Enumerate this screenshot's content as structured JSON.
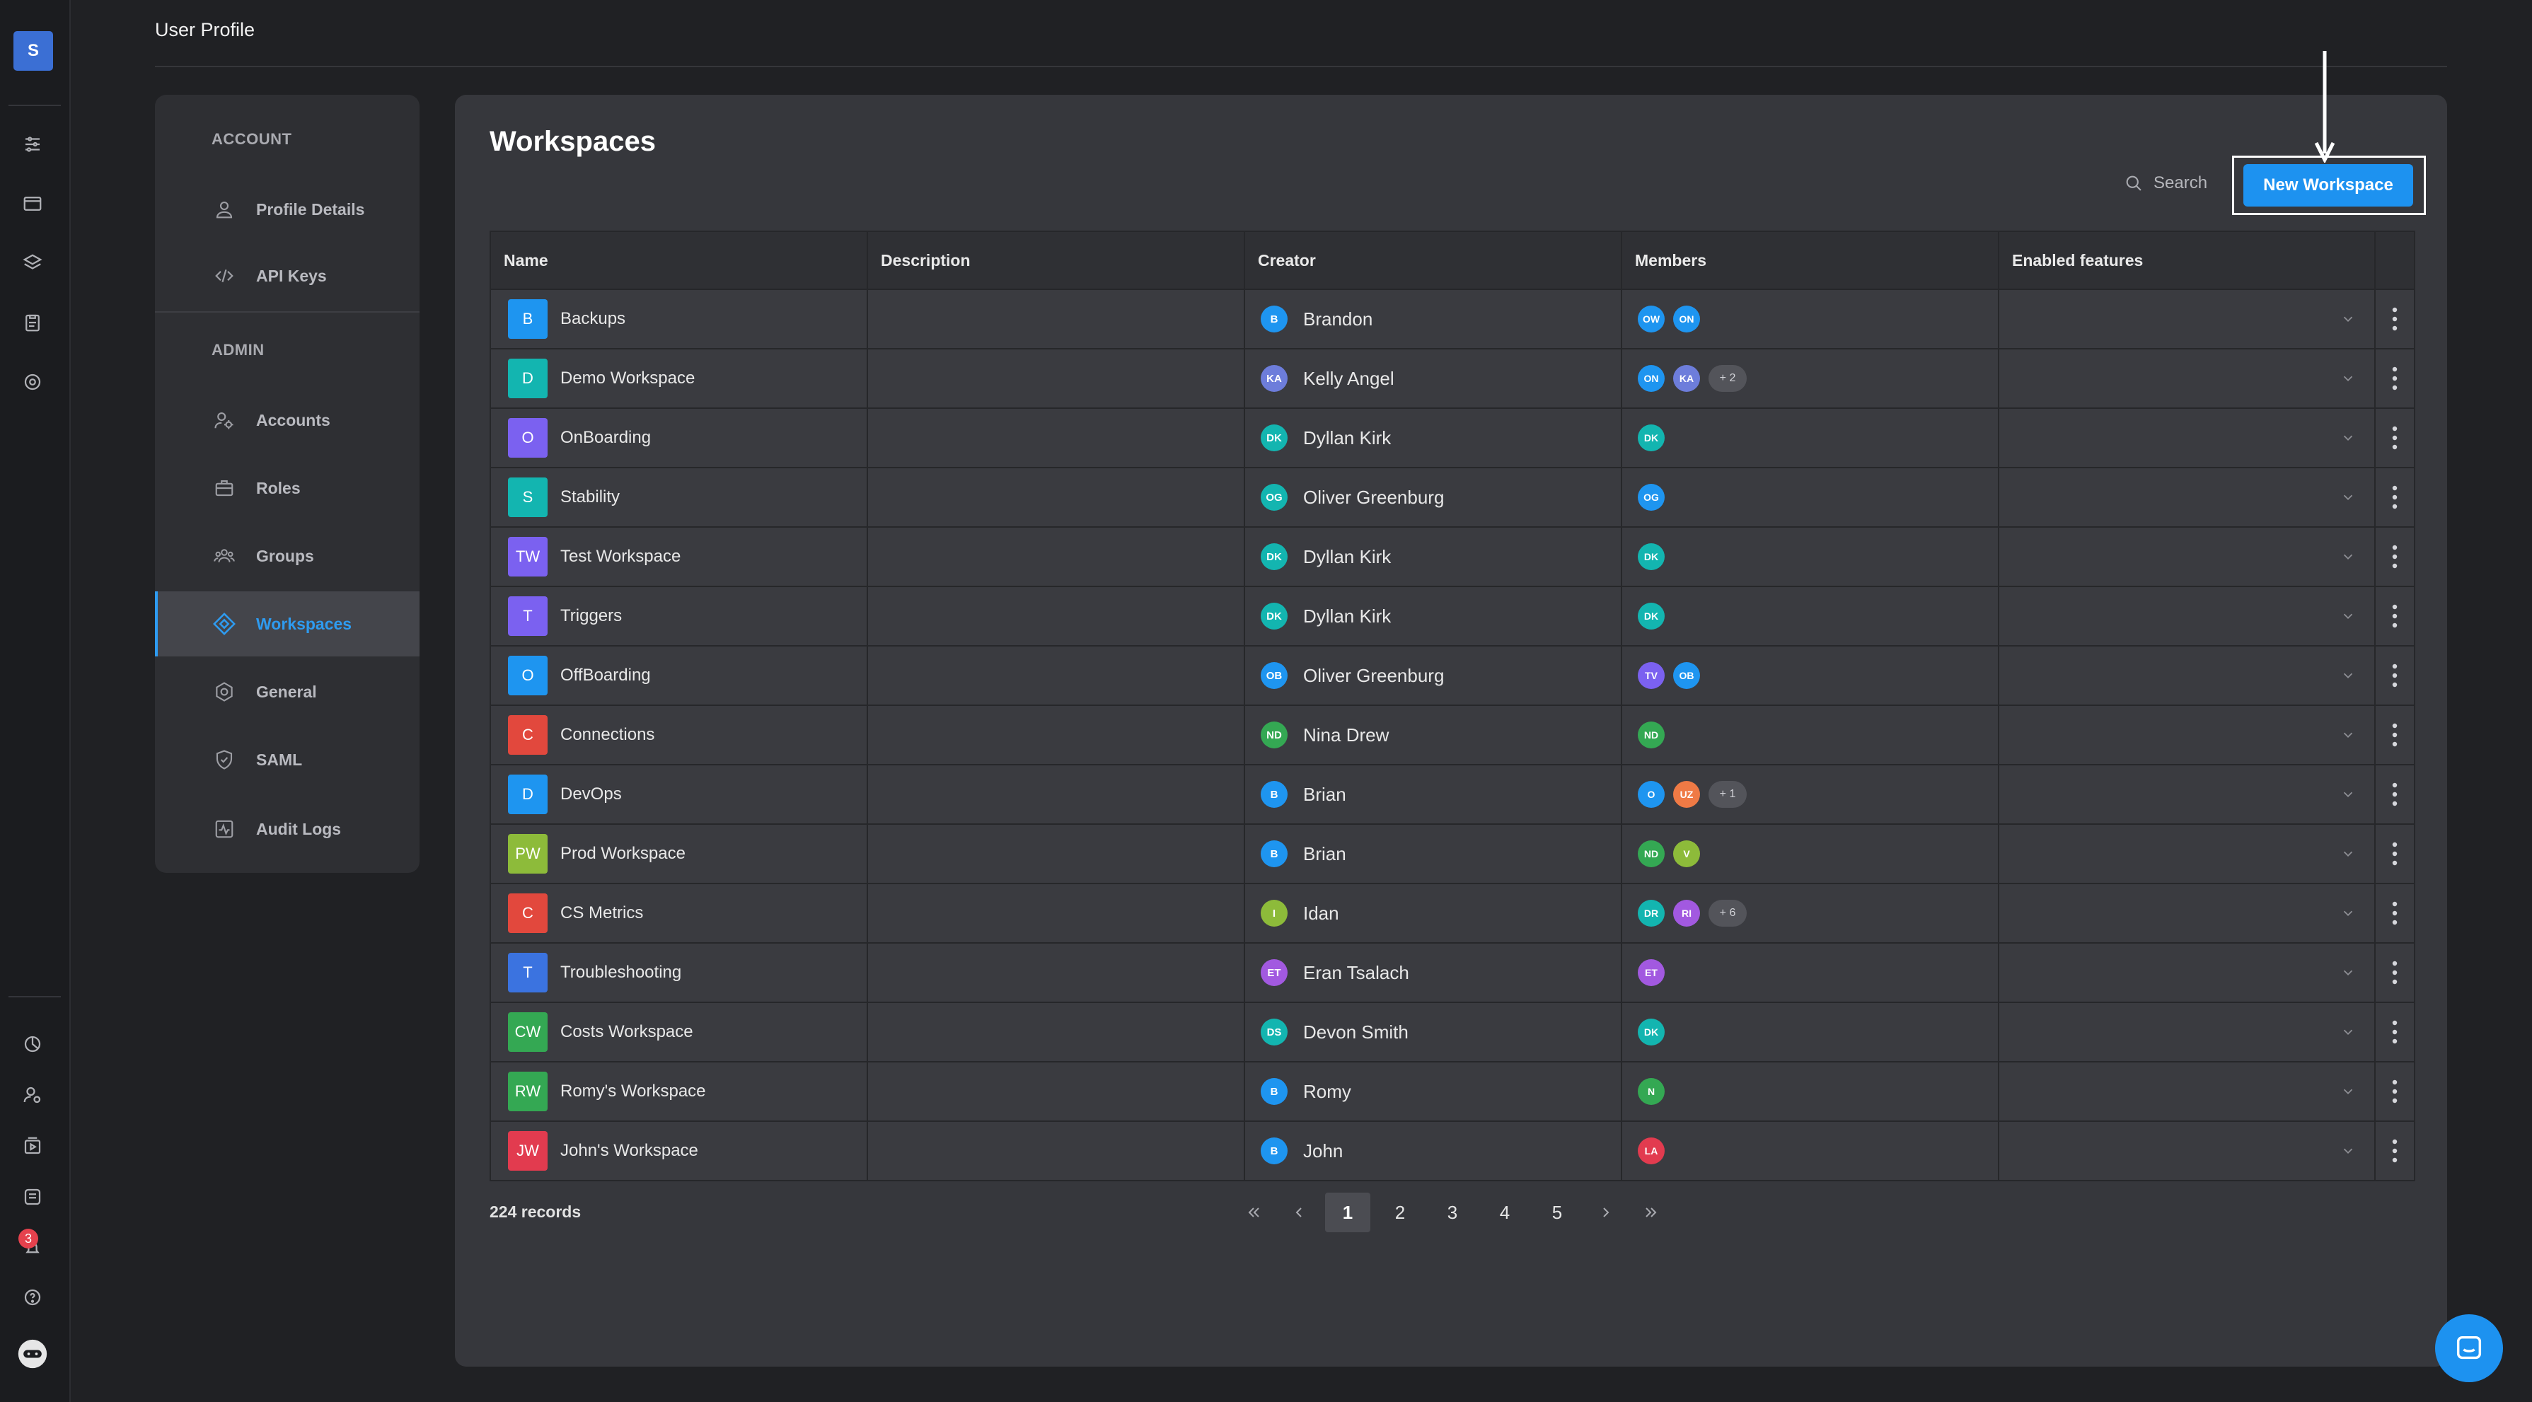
{
  "app": {
    "logo_letter": "S",
    "notification_count": "3"
  },
  "header": {
    "title": "User Profile"
  },
  "sidebar": {
    "account_section": "ACCOUNT",
    "admin_section": "ADMIN",
    "items": [
      {
        "label": "Profile Details",
        "icon": "user-icon"
      },
      {
        "label": "API Keys",
        "icon": "code-icon"
      },
      {
        "label": "Accounts",
        "icon": "users-gear-icon"
      },
      {
        "label": "Roles",
        "icon": "briefcase-icon"
      },
      {
        "label": "Groups",
        "icon": "group-icon"
      },
      {
        "label": "Workspaces",
        "icon": "workspace-icon",
        "active": true
      },
      {
        "label": "General",
        "icon": "settings-icon"
      },
      {
        "label": "SAML",
        "icon": "shield-icon"
      },
      {
        "label": "Audit Logs",
        "icon": "activity-icon"
      }
    ]
  },
  "main": {
    "title": "Workspaces",
    "search_label": "Search",
    "new_button": "New Workspace",
    "columns": [
      "Name",
      "Description",
      "Creator",
      "Members",
      "Enabled features"
    ],
    "rows": [
      {
        "initials": "B",
        "color": "#1e95f0",
        "name": "Backups",
        "creator_initials": "B",
        "creator_color": "#1e95f0",
        "creator": "Brandon",
        "members": [
          {
            "i": "OW",
            "c": "#1e95f0"
          },
          {
            "i": "ON",
            "c": "#1e95f0"
          }
        ],
        "more": ""
      },
      {
        "initials": "D",
        "color": "#13b5b0",
        "name": "Demo Workspace",
        "creator_initials": "KA",
        "creator_color": "#6d7ddb",
        "creator": "Kelly Angel",
        "members": [
          {
            "i": "ON",
            "c": "#1e95f0"
          },
          {
            "i": "KA",
            "c": "#6d7ddb"
          }
        ],
        "more": "+ 2"
      },
      {
        "initials": "O",
        "color": "#7b61f0",
        "name": "OnBoarding",
        "creator_initials": "DK",
        "creator_color": "#13b5b0",
        "creator": "Dyllan Kirk",
        "members": [
          {
            "i": "DK",
            "c": "#13b5b0"
          }
        ],
        "more": ""
      },
      {
        "initials": "S",
        "color": "#13b5b0",
        "name": "Stability",
        "creator_initials": "OG",
        "creator_color": "#13b5b0",
        "creator": "Oliver Greenburg",
        "members": [
          {
            "i": "OG",
            "c": "#1e95f0"
          }
        ],
        "more": ""
      },
      {
        "initials": "TW",
        "color": "#7b61f0",
        "name": "Test Workspace",
        "creator_initials": "DK",
        "creator_color": "#13b5b0",
        "creator": "Dyllan Kirk",
        "members": [
          {
            "i": "DK",
            "c": "#13b5b0"
          }
        ],
        "more": ""
      },
      {
        "initials": "T",
        "color": "#7b61f0",
        "name": "Triggers",
        "creator_initials": "DK",
        "creator_color": "#13b5b0",
        "creator": "Dyllan Kirk",
        "members": [
          {
            "i": "DK",
            "c": "#13b5b0"
          }
        ],
        "more": ""
      },
      {
        "initials": "O",
        "color": "#1e95f0",
        "name": "OffBoarding",
        "creator_initials": "OB",
        "creator_color": "#1e95f0",
        "creator": "Oliver Greenburg",
        "members": [
          {
            "i": "TV",
            "c": "#7b61f0"
          },
          {
            "i": "OB",
            "c": "#1e95f0"
          }
        ],
        "more": ""
      },
      {
        "initials": "C",
        "color": "#e2483d",
        "name": "Connections",
        "creator_initials": "ND",
        "creator_color": "#34a853",
        "creator": "Nina Drew",
        "members": [
          {
            "i": "ND",
            "c": "#34a853"
          }
        ],
        "more": ""
      },
      {
        "initials": "D",
        "color": "#1e95f0",
        "name": "DevOps",
        "creator_initials": "B",
        "creator_color": "#1e95f0",
        "creator": "Brian",
        "members": [
          {
            "i": "O",
            "c": "#1e95f0"
          },
          {
            "i": "UZ",
            "c": "#ef7a45"
          }
        ],
        "more": "+ 1"
      },
      {
        "initials": "PW",
        "color": "#8dbb3a",
        "name": "Prod Workspace",
        "creator_initials": "B",
        "creator_color": "#1e95f0",
        "creator": "Brian",
        "members": [
          {
            "i": "ND",
            "c": "#34a853"
          },
          {
            "i": "V",
            "c": "#8dbb3a"
          }
        ],
        "more": ""
      },
      {
        "initials": "C",
        "color": "#e2483d",
        "name": "CS Metrics",
        "creator_initials": "I",
        "creator_color": "#8dbb3a",
        "creator": "Idan",
        "members": [
          {
            "i": "DR",
            "c": "#13b5b0"
          },
          {
            "i": "RI",
            "c": "#a259e0"
          }
        ],
        "more": "+ 6"
      },
      {
        "initials": "T",
        "color": "#3b73e0",
        "name": "Troubleshooting",
        "creator_initials": "ET",
        "creator_color": "#a259e0",
        "creator": "Eran Tsalach",
        "members": [
          {
            "i": "ET",
            "c": "#a259e0"
          }
        ],
        "more": ""
      },
      {
        "initials": "CW",
        "color": "#34a853",
        "name": "Costs Workspace",
        "creator_initials": "DS",
        "creator_color": "#13b5b0",
        "creator": "Devon Smith",
        "members": [
          {
            "i": "DK",
            "c": "#13b5b0"
          }
        ],
        "more": ""
      },
      {
        "initials": "RW",
        "color": "#34a853",
        "name": "Romy's Workspace",
        "creator_initials": "B",
        "creator_color": "#1e95f0",
        "creator": "Romy",
        "members": [
          {
            "i": "N",
            "c": "#34a853"
          }
        ],
        "more": ""
      },
      {
        "initials": "JW",
        "color": "#e23b4f",
        "name": "John's Workspace",
        "creator_initials": "B",
        "creator_color": "#1e95f0",
        "creator": "John",
        "members": [
          {
            "i": "LA",
            "c": "#e23b4f"
          }
        ],
        "more": ""
      }
    ],
    "records": "224 records",
    "pages": [
      "1",
      "2",
      "3",
      "4",
      "5"
    ],
    "current_page": "1"
  }
}
